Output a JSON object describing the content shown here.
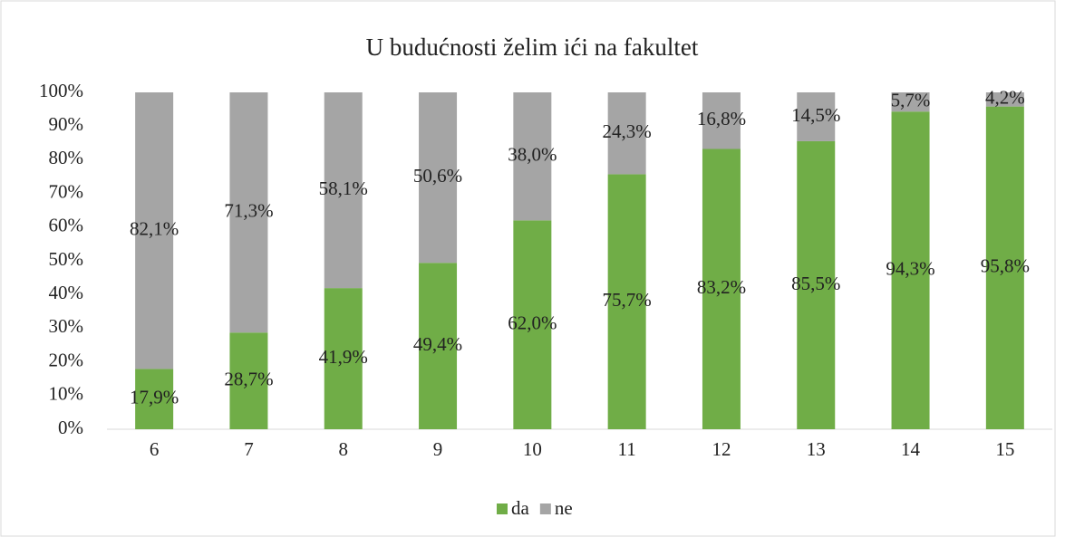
{
  "chart_data": {
    "type": "stacked-bar",
    "title": "U budućnosti želim ići na fakultet",
    "categories": [
      "6",
      "7",
      "8",
      "9",
      "10",
      "11",
      "12",
      "13",
      "14",
      "15"
    ],
    "series": [
      {
        "name": "da",
        "color": "#70ad47",
        "values": [
          17.9,
          28.7,
          41.9,
          49.4,
          62.0,
          75.7,
          83.2,
          85.5,
          94.3,
          95.8
        ],
        "value_labels": [
          "17,9%",
          "28,7%",
          "41,9%",
          "49,4%",
          "62,0%",
          "75,7%",
          "83,2%",
          "85,5%",
          "94,3%",
          "95,8%"
        ]
      },
      {
        "name": "ne",
        "color": "#a5a5a5",
        "values": [
          82.1,
          71.3,
          58.1,
          50.6,
          38.0,
          24.3,
          16.8,
          14.5,
          5.7,
          4.2
        ],
        "value_labels": [
          "82,1%",
          "71,3%",
          "58,1%",
          "50,6%",
          "38,0%",
          "24,3%",
          "16,8%",
          "14,5%",
          "5,7%",
          "4,2%"
        ]
      }
    ],
    "ylim": [
      0,
      100
    ],
    "yticks": [
      {
        "value": 0,
        "label": "0%"
      },
      {
        "value": 10,
        "label": "10%"
      },
      {
        "value": 20,
        "label": "20%"
      },
      {
        "value": 30,
        "label": "30%"
      },
      {
        "value": 40,
        "label": "40%"
      },
      {
        "value": 50,
        "label": "50%"
      },
      {
        "value": 60,
        "label": "60%"
      },
      {
        "value": 70,
        "label": "70%"
      },
      {
        "value": 80,
        "label": "80%"
      },
      {
        "value": 90,
        "label": "90%"
      },
      {
        "value": 100,
        "label": "100%"
      }
    ],
    "grid": false,
    "legend": "bottom"
  }
}
